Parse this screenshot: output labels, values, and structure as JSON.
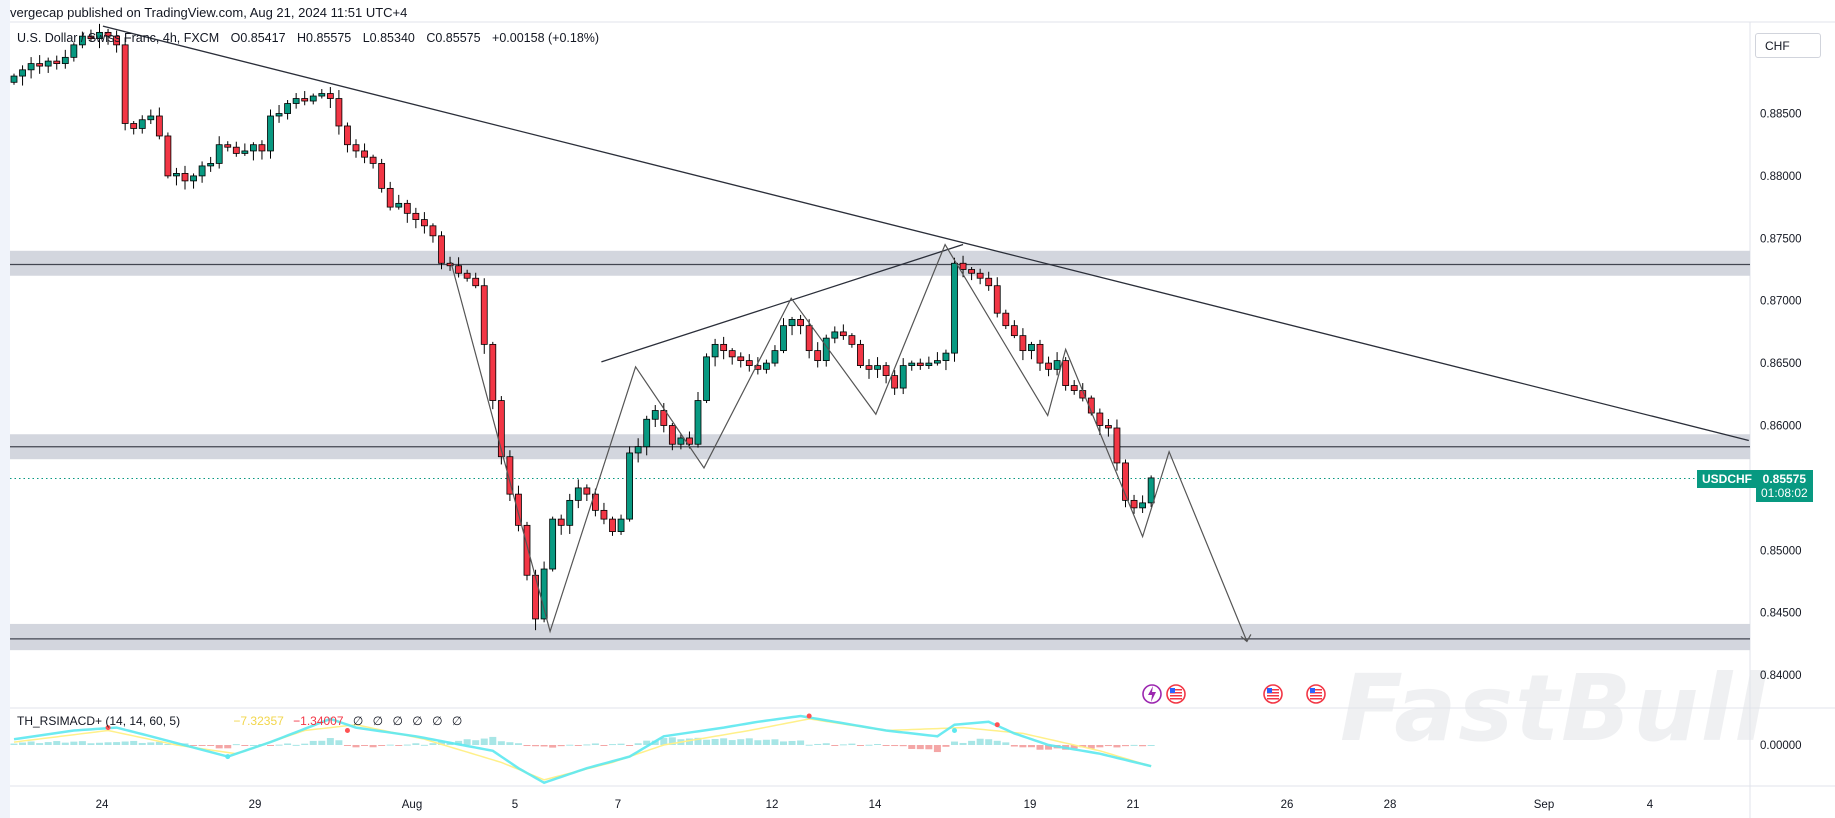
{
  "publisher": "vergecap published on TradingView.com, Aug 21, 2024 11:51 UTC+4",
  "legend": {
    "symbol": "U.S. Dollar / Swiss Franc, 4h, FXCM",
    "open": "O0.85417",
    "high": "H0.85575",
    "low": "L0.85340",
    "close": "C0.85575",
    "change": "+0.00158 (+0.18%)"
  },
  "currency_button": "CHF",
  "price_tag": {
    "symbol": "USDCHF",
    "price": "0.85575",
    "countdown": "01:08:02",
    "color": "#089981"
  },
  "indicator": {
    "name": "TH_RSIMACD+ (14, 14, 60, 5)",
    "value1": "−7.32357",
    "value2": "−1.34007",
    "empties": [
      "∅",
      "∅",
      "∅",
      "∅",
      "∅",
      "∅"
    ],
    "zero_label": "0.00000",
    "colors": {
      "main": "#5ce8ef",
      "signal": "#fff08a",
      "hist_pos": "#a8e6e6",
      "hist_neg": "#f4a6a6",
      "dot_red": "#ff5252"
    }
  },
  "watermark": "FastBull",
  "colors": {
    "up": "#089981",
    "down": "#f23645",
    "zone": "#d1d4dc",
    "drawing": "#2a2e39"
  },
  "chart_data": {
    "type": "candlestick",
    "timeframe": "4h",
    "y_ticks": [
      "0.88500",
      "0.88000",
      "0.87500",
      "0.87000",
      "0.86500",
      "0.86000",
      "0.85000",
      "0.84500",
      "0.84000"
    ],
    "x_ticks": [
      "24",
      "29",
      "Aug",
      "5",
      "7",
      "12",
      "14",
      "19",
      "21",
      "26",
      "28",
      "Sep",
      "4"
    ],
    "first_open": 0.8875,
    "close": [
      0.888,
      0.8885,
      0.889,
      0.8888,
      0.8892,
      0.889,
      0.8895,
      0.8905,
      0.8912,
      0.891,
      0.8915,
      0.8912,
      0.8905,
      0.8842,
      0.8838,
      0.8845,
      0.8848,
      0.8832,
      0.88,
      0.8802,
      0.8796,
      0.88,
      0.8808,
      0.881,
      0.8825,
      0.8823,
      0.8818,
      0.882,
      0.8825,
      0.882,
      0.8848,
      0.885,
      0.8858,
      0.8862,
      0.886,
      0.8864,
      0.8866,
      0.8862,
      0.884,
      0.8825,
      0.882,
      0.8815,
      0.881,
      0.879,
      0.8775,
      0.8778,
      0.877,
      0.8765,
      0.876,
      0.8752,
      0.873,
      0.8728,
      0.8722,
      0.8718,
      0.8712,
      0.8665,
      0.862,
      0.8575,
      0.8545,
      0.852,
      0.848,
      0.8445,
      0.8485,
      0.8525,
      0.852,
      0.854,
      0.855,
      0.8545,
      0.8532,
      0.8525,
      0.8515,
      0.8525,
      0.8578,
      0.8583,
      0.8605,
      0.8612,
      0.86,
      0.8585,
      0.859,
      0.8585,
      0.862,
      0.8655,
      0.8665,
      0.866,
      0.8655,
      0.8652,
      0.8648,
      0.8645,
      0.865,
      0.866,
      0.868,
      0.8685,
      0.868,
      0.866,
      0.8652,
      0.867,
      0.8675,
      0.8672,
      0.8665,
      0.8648,
      0.8645,
      0.8648,
      0.864,
      0.863,
      0.8648,
      0.865,
      0.8648,
      0.865,
      0.8652,
      0.8658,
      0.873,
      0.8725,
      0.8722,
      0.8718,
      0.8712,
      0.869,
      0.868,
      0.8672,
      0.866,
      0.8665,
      0.865,
      0.8645,
      0.8652,
      0.8632,
      0.8628,
      0.8622,
      0.861,
      0.86,
      0.8598,
      0.857,
      0.854,
      0.8534,
      0.8538,
      0.8558
    ],
    "last_price": 0.85575,
    "zones": [
      {
        "top": 0.874,
        "bottom": 0.872,
        "line": 0.8729
      },
      {
        "top": 0.8593,
        "bottom": 0.8573,
        "line": 0.8583
      },
      {
        "top": 0.8441,
        "bottom": 0.842,
        "line": 0.8429
      }
    ],
    "trendline": [
      [
        10.4,
        0.892
      ],
      [
        202.9,
        0.8588
      ]
    ],
    "wedge_line": [
      [
        68.7,
        0.8651
      ],
      [
        111.0,
        0.8745
      ]
    ],
    "zigzag": [
      [
        51.1,
        0.8731
      ],
      [
        62.7,
        0.8435
      ],
      [
        72.7,
        0.8647
      ],
      [
        80.7,
        0.8566
      ],
      [
        90.9,
        0.8702
      ],
      [
        100.8,
        0.8609
      ],
      [
        108.9,
        0.8745
      ],
      [
        120.9,
        0.8608
      ],
      [
        123.0,
        0.8661
      ],
      [
        132.0,
        0.8511
      ],
      [
        135.1,
        0.8579
      ],
      [
        144.2,
        0.8427
      ]
    ],
    "indicator_main": [
      [
        0,
        2
      ],
      [
        7,
        5
      ],
      [
        12,
        6
      ],
      [
        16,
        3
      ],
      [
        25,
        -4
      ],
      [
        30,
        1
      ],
      [
        37,
        9
      ],
      [
        40,
        6
      ],
      [
        47,
        3
      ],
      [
        56,
        -2
      ],
      [
        59,
        -8
      ],
      [
        62,
        -13
      ],
      [
        67,
        -8
      ],
      [
        72,
        -4
      ],
      [
        76,
        3
      ],
      [
        83,
        6
      ],
      [
        87,
        8
      ],
      [
        92,
        10
      ],
      [
        94,
        9
      ],
      [
        102,
        5
      ],
      [
        108,
        3
      ],
      [
        110,
        7
      ],
      [
        114,
        8
      ],
      [
        117,
        4
      ],
      [
        121,
        0
      ],
      [
        127,
        -3
      ],
      [
        133,
        -7.3
      ]
    ],
    "indicator_signal": [
      [
        0,
        1
      ],
      [
        11,
        5
      ],
      [
        19,
        0
      ],
      [
        26,
        -3
      ],
      [
        34,
        5
      ],
      [
        40,
        7
      ],
      [
        48,
        2
      ],
      [
        57,
        -6
      ],
      [
        62,
        -12
      ],
      [
        70,
        -6
      ],
      [
        76,
        0
      ],
      [
        86,
        5
      ],
      [
        93,
        9
      ],
      [
        102,
        5
      ],
      [
        111,
        6
      ],
      [
        118,
        4
      ],
      [
        127,
        -2
      ],
      [
        133,
        -7.3
      ]
    ],
    "indicator_red_dots": [
      [
        11,
        6
      ],
      [
        39,
        5
      ],
      [
        93,
        10
      ],
      [
        115,
        7
      ]
    ],
    "indicator_cyan_dots": [
      [
        25,
        -4
      ],
      [
        110,
        5
      ]
    ],
    "events": [
      "lightning-event",
      "us-flag-event",
      "us-flag-event",
      "us-flag-event"
    ]
  }
}
